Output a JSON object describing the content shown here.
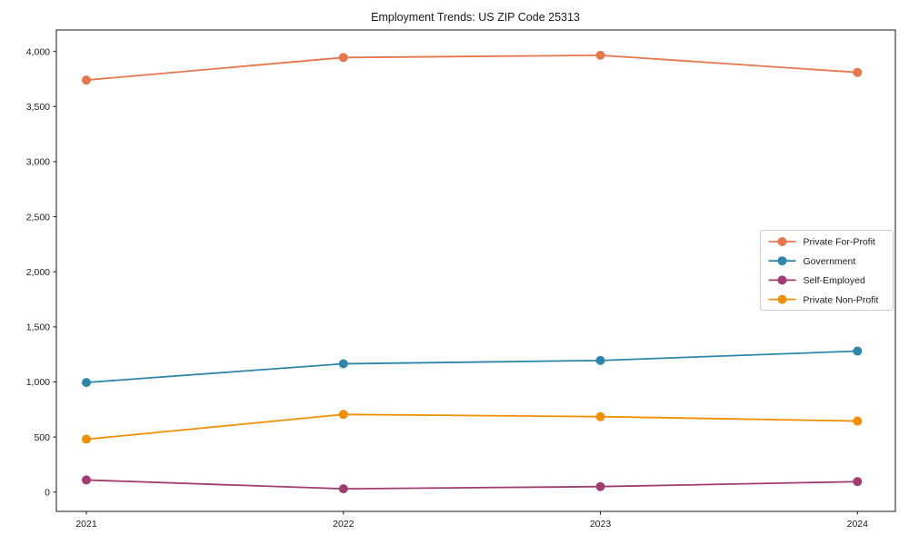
{
  "chart_data": {
    "type": "line",
    "title": "Employment Trends: US ZIP Code 25313",
    "xlabel": "",
    "ylabel": "",
    "categories": [
      "2021",
      "2022",
      "2023",
      "2024"
    ],
    "series": [
      {
        "name": "Private For-Profit",
        "color": "#E8764B",
        "values": [
          3740,
          3945,
          3965,
          3810
        ]
      },
      {
        "name": "Government",
        "color": "#2E86AB",
        "values": [
          995,
          1165,
          1195,
          1280
        ]
      },
      {
        "name": "Self-Employed",
        "color": "#A23B72",
        "values": [
          110,
          30,
          50,
          95
        ]
      },
      {
        "name": "Private Non-Profit",
        "color": "#F18F01",
        "values": [
          480,
          705,
          685,
          645
        ]
      }
    ],
    "yticks": {
      "values": [
        0,
        500,
        1000,
        1500,
        2000,
        2500,
        3000,
        3500,
        4000
      ],
      "labels": [
        "0",
        "500",
        "1,000",
        "1,500",
        "2,000",
        "2,500",
        "3,000",
        "3,500",
        "4,000"
      ]
    },
    "ylim": [
      -175,
      4195
    ],
    "grid": false,
    "marker": "circle",
    "legend_position": "center right",
    "frame_color": "#1a1a1a",
    "legend_border_color": "#cccccc",
    "legend_background": "#ffffff"
  }
}
